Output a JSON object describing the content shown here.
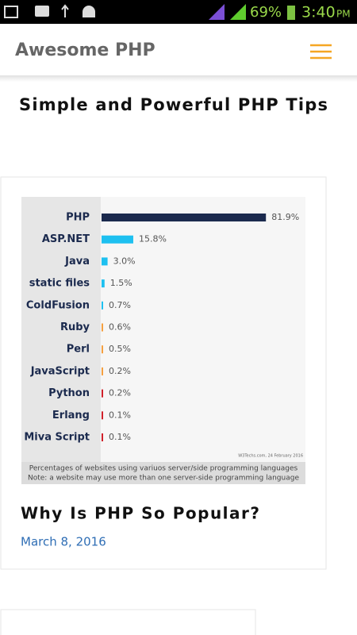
{
  "status_bar": {
    "battery": "69%",
    "time": "3:40",
    "ampm": "PM"
  },
  "header": {
    "title": "Awesome PHP"
  },
  "page_title": "Simple and Powerful PHP Tips",
  "chart_data": {
    "type": "bar",
    "orientation": "horizontal",
    "categories": [
      "PHP",
      "ASP.NET",
      "Java",
      "static files",
      "ColdFusion",
      "Ruby",
      "Perl",
      "JavaScript",
      "Python",
      "Erlang",
      "Miva Script"
    ],
    "values": [
      81.9,
      15.8,
      3.0,
      1.5,
      0.7,
      0.6,
      0.5,
      0.2,
      0.2,
      0.1,
      0.1
    ],
    "value_labels": [
      "81.9%",
      "15.8%",
      "3.0%",
      "1.5%",
      "0.7%",
      "0.6%",
      "0.5%",
      "0.2%",
      "0.2%",
      "0.1%",
      "0.1%"
    ],
    "colors": [
      "#1b2a4e",
      "#1ec0f0",
      "#1ec0f0",
      "#1ec0f0",
      "#1ec0f0",
      "#f5a040",
      "#f5a040",
      "#f5a040",
      "#d0202a",
      "#d0202a",
      "#d0202a"
    ],
    "source": "W3Techs.com, 24 February 2016",
    "caption": "Percentages of websites using variuos server/side programming languages",
    "note": "Note: a website may use more than one server-side programming language"
  },
  "card": {
    "title": "Why Is PHP So Popular?",
    "date": "March 8, 2016"
  }
}
